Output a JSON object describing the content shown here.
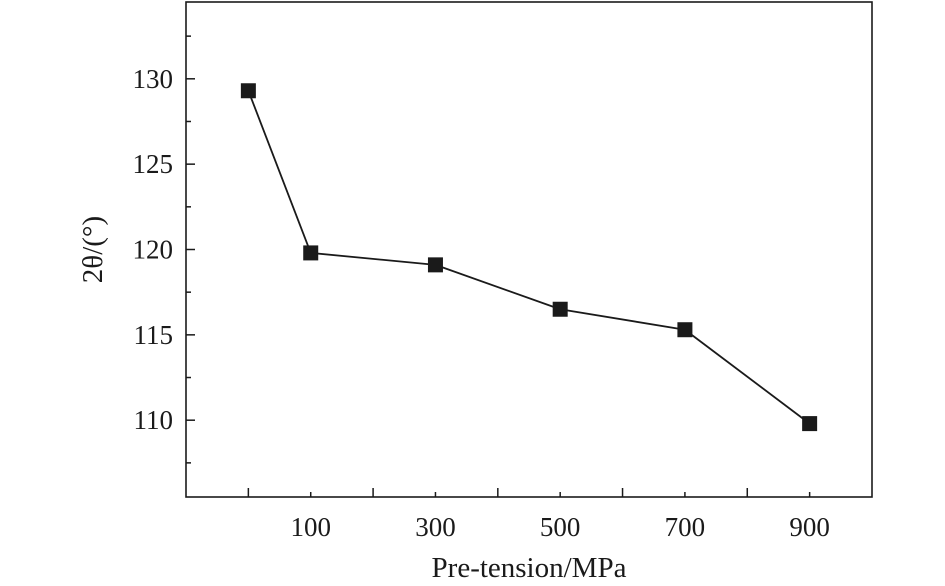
{
  "chart_data": {
    "type": "line",
    "xlabel": "Pre-tension/MPa",
    "ylabel": "2θ/(°)",
    "xlim": [
      -100,
      1000
    ],
    "ylim": [
      105.5,
      134.5
    ],
    "x_ticks_major": [
      0,
      200,
      400,
      600,
      800
    ],
    "x_ticks_labeled": [
      100,
      300,
      500,
      700,
      900
    ],
    "y_ticks": [
      110,
      115,
      120,
      125,
      130
    ],
    "y_tick_labels": [
      "110",
      "115",
      "120",
      "125",
      "130"
    ],
    "x_tick_labels": [
      "100",
      "300",
      "500",
      "700",
      "900"
    ],
    "series": [
      {
        "marker": "square",
        "color": "#1a1a1a",
        "points": [
          {
            "x": 0,
            "y": 129.3
          },
          {
            "x": 100,
            "y": 119.8
          },
          {
            "x": 300,
            "y": 119.1
          },
          {
            "x": 500,
            "y": 116.5
          },
          {
            "x": 700,
            "y": 115.3
          },
          {
            "x": 900,
            "y": 109.8
          }
        ]
      }
    ],
    "grid": false,
    "legend": "none"
  }
}
